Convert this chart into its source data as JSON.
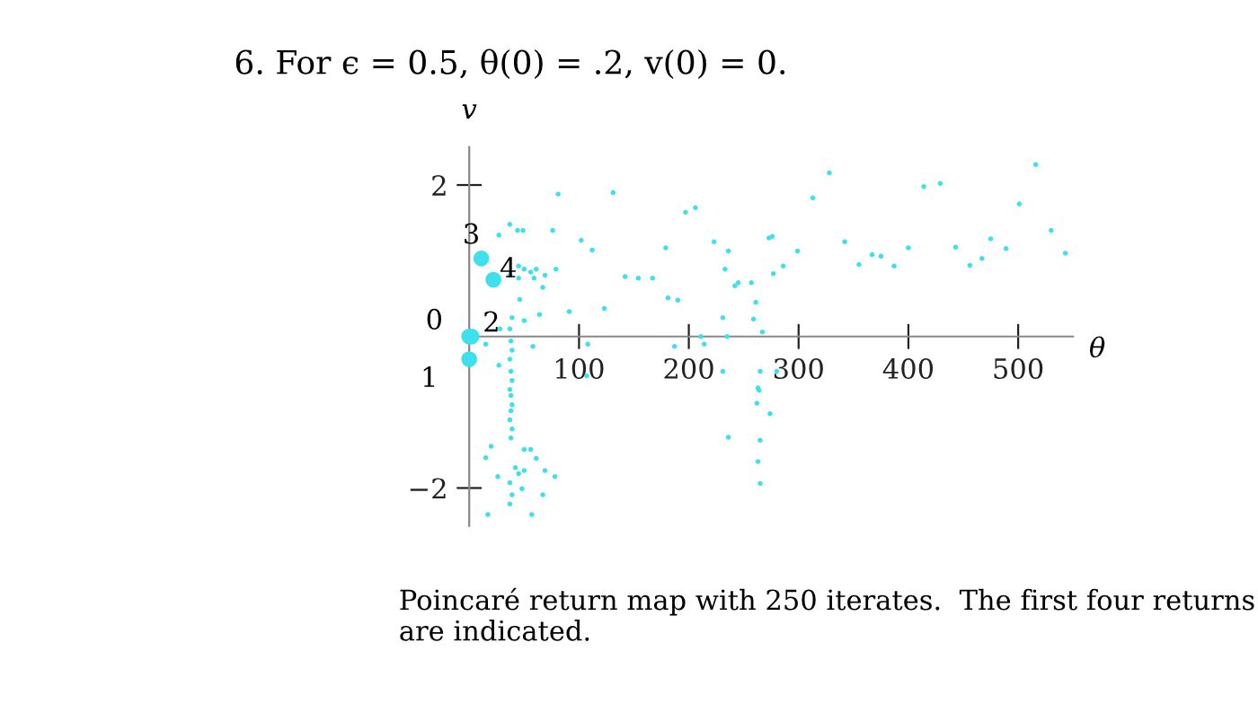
{
  "chart_data": {
    "type": "scatter",
    "title": "6. For ϵ = 0.5, θ(0) = .2, v(0) = 0.",
    "xlabel": "θ",
    "ylabel": "v",
    "xlim": [
      0,
      550
    ],
    "ylim": [
      -2.5,
      2.5
    ],
    "xticks": [
      100,
      200,
      300,
      400,
      500
    ],
    "yticks": [
      {
        "value": -2,
        "label": "−2"
      },
      2
    ],
    "grid": false,
    "legend": false,
    "marker": "circle",
    "series": [
      {
        "color": "#3ee0ee",
        "x": [
          81,
          131,
          37,
          44,
          49,
          76,
          27,
          102,
          112,
          179,
          197,
          206,
          223,
          236,
          233,
          45,
          50,
          56,
          61,
          37,
          45,
          59,
          79,
          69,
          67,
          46,
          91,
          123,
          64,
          50,
          39,
          37,
          28,
          142,
          154,
          167,
          181,
          190,
          231,
          15,
          58,
          108,
          107,
          187,
          211,
          214,
          231,
          236,
          27,
          38,
          39,
          37,
          38,
          39,
          37,
          38,
          39,
          38,
          37,
          39,
          38,
          20,
          50,
          56,
          15,
          61,
          42,
          26,
          45,
          50,
          69,
          78,
          37,
          48,
          39,
          67,
          37,
          17,
          57,
          242,
          245,
          257,
          261,
          259,
          267,
          235,
          265,
          263,
          264,
          262,
          274,
          265,
          263,
          265,
          280,
          273,
          276,
          277,
          286,
          299,
          313,
          328,
          342,
          355,
          367,
          375,
          387,
          400,
          414,
          429,
          443,
          456,
          467,
          475,
          489,
          501,
          516,
          530,
          543
        ],
        "values": [
          1.88,
          1.9,
          1.48,
          1.4,
          1.4,
          1.4,
          1.34,
          1.27,
          1.14,
          1.17,
          1.64,
          1.7,
          1.25,
          1.13,
          0.89,
          0.93,
          0.89,
          0.85,
          0.89,
          0.81,
          0.77,
          0.77,
          0.89,
          0.81,
          0.65,
          0.49,
          0.33,
          0.37,
          0.29,
          0.21,
          0.25,
          0.1,
          0.1,
          0.79,
          0.77,
          0.77,
          0.51,
          0.48,
          0.25,
          -0.1,
          -0.13,
          -0.1,
          -0.52,
          -0.13,
          0,
          -0.1,
          -0.46,
          -1.33,
          -0.38,
          -0.06,
          -0.18,
          -0.3,
          -0.46,
          -0.58,
          -0.7,
          -0.78,
          -0.9,
          -0.98,
          -1.1,
          -1.22,
          -1.34,
          -1.45,
          -1.49,
          -1.49,
          -1.6,
          -1.61,
          -1.73,
          -1.85,
          -1.81,
          -1.77,
          -1.77,
          -1.85,
          -1.93,
          -2.01,
          -2.09,
          -2.09,
          -2.21,
          -2.35,
          -2.35,
          0.67,
          0.71,
          0.71,
          0.45,
          0.23,
          0.06,
          0,
          -0.46,
          -0.68,
          -0.71,
          -0.88,
          -1.02,
          -1.37,
          -1.65,
          -1.94,
          -0.46,
          1.3,
          1.32,
          0.83,
          0.93,
          1.13,
          1.83,
          2.16,
          1.25,
          0.95,
          1.08,
          1.06,
          0.93,
          1.17,
          1.98,
          2.02,
          1.18,
          0.94,
          1.03,
          1.29,
          1.16,
          1.75,
          2.27,
          1.4,
          1.1
        ]
      },
      {
        "color": "#3ee0ee",
        "x": [
          0,
          0,
          2,
          11,
          22
        ],
        "values": [
          0,
          -0.3,
          0,
          1.03,
          0.75
        ]
      }
    ],
    "annotations": [
      {
        "text": "0",
        "x": 0,
        "y": 0
      },
      {
        "text": "1",
        "x": 0,
        "y": -0.3
      },
      {
        "text": "2",
        "x": 2,
        "y": 0
      },
      {
        "text": "3",
        "x": 11,
        "y": 1.03
      },
      {
        "text": "4",
        "x": 22,
        "y": 0.75
      },
      "Poincaré return map with 250 iterates.  The first four returns are indicated."
    ]
  }
}
